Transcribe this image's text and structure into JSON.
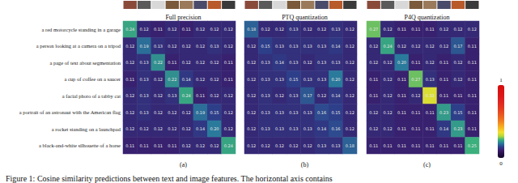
{
  "chart_data": [
    {
      "type": "heatmap",
      "title": "Full precision",
      "subtitle": "(a)",
      "tick_labels": "y",
      "data_labels": true,
      "categories": [
        "a red motorcycle standing in a garage",
        "a person looking at a camera on a tripod",
        "a page of text about segmentation",
        "a cup of coffee on a saucer",
        "a facial photo of a tabby cat",
        "a portrait of an astronaut with the American flag",
        "a rocket standing on a launchpad",
        "a black-and-white silhouette of a horse"
      ],
      "values": [
        [
          0.24,
          0.12,
          0.11,
          0.12,
          0.11,
          0.12,
          0.12,
          0.12
        ],
        [
          0.12,
          0.19,
          0.13,
          0.12,
          0.12,
          0.12,
          0.13,
          0.12
        ],
        [
          0.12,
          0.13,
          0.22,
          0.11,
          0.12,
          0.12,
          0.12,
          0.11
        ],
        [
          0.11,
          0.13,
          0.12,
          0.22,
          0.14,
          0.12,
          0.12,
          0.11
        ],
        [
          0.12,
          0.13,
          0.12,
          0.13,
          0.24,
          0.11,
          0.12,
          0.12
        ],
        [
          0.12,
          0.13,
          0.12,
          0.12,
          0.12,
          0.19,
          0.15,
          0.12
        ],
        [
          0.12,
          0.12,
          0.12,
          0.12,
          0.12,
          0.14,
          0.2,
          0.12
        ],
        [
          0.11,
          0.11,
          0.11,
          0.11,
          0.12,
          0.12,
          0.12,
          0.24
        ]
      ],
      "value_labels": [
        [
          "0.24",
          "0.12",
          "0.11",
          "0.12",
          "0.11",
          "0.12",
          "0.12",
          "0.12"
        ],
        [
          "0.12",
          "0.19",
          "0.13",
          "0.12",
          "0.12",
          "0.12",
          "0.13",
          "0.12"
        ],
        [
          "0.12",
          "0.13",
          "0.22",
          "0.11",
          "0.12",
          "0.12",
          "0.12",
          "0.11"
        ],
        [
          "0.11",
          "0.13",
          "0.12",
          "0.22",
          "0.14",
          "0.12",
          "0.12",
          "0.11"
        ],
        [
          "0.12",
          "0.13",
          "0.12",
          "0.13",
          "0.24",
          "0.11",
          "0.12",
          "0.12"
        ],
        [
          "0.12",
          "0.13",
          "0.12",
          "0.12",
          "0.12",
          "0.19",
          "0.15",
          "0.12"
        ],
        [
          "0.12",
          "0.12",
          "0.12",
          "0.12",
          "0.12",
          "0.14",
          "0.20",
          "0.12"
        ],
        [
          "0.11",
          "0.11",
          "0.11",
          "0.11",
          "0.12",
          "0.12",
          "0.12",
          "0.24"
        ]
      ],
      "colorbar": {
        "range": [
          0,
          1
        ],
        "ticks": [
          0,
          1
        ]
      }
    },
    {
      "type": "heatmap",
      "title": "PTQ quantization",
      "subtitle": "(b)",
      "tick_labels": false,
      "data_labels": true,
      "categories": [
        "a red motorcycle standing in a garage",
        "a person looking at a camera on a tripod",
        "a page of text about segmentation",
        "a cup of coffee on a saucer",
        "a facial photo of a tabby cat",
        "a portrait of an astronaut with the American flag",
        "a rocket standing on a launchpad",
        "a black-and-white silhouette of a horse"
      ],
      "values": [
        [
          0.18,
          0.12,
          0.12,
          0.13,
          0.12,
          0.12,
          0.13,
          0.12
        ],
        [
          0.12,
          0.15,
          0.13,
          0.13,
          0.13,
          0.13,
          0.14,
          0.12
        ],
        [
          0.12,
          0.13,
          0.14,
          0.13,
          0.12,
          0.13,
          0.13,
          0.12
        ],
        [
          0.12,
          0.13,
          0.13,
          0.15,
          0.13,
          0.13,
          0.2,
          0.12
        ],
        [
          0.12,
          0.13,
          0.12,
          0.13,
          0.17,
          0.12,
          0.14,
          0.12
        ],
        [
          0.12,
          0.13,
          0.13,
          0.13,
          0.13,
          0.16,
          0.15,
          0.12
        ],
        [
          0.12,
          0.13,
          0.13,
          0.13,
          0.13,
          0.14,
          0.16,
          0.12
        ],
        [
          0.12,
          0.12,
          0.12,
          0.12,
          0.12,
          0.13,
          0.13,
          0.18
        ]
      ],
      "value_labels": [
        [
          "0.18",
          "0.12",
          "0.12",
          "0.13",
          "0.12",
          "0.12",
          "0.13",
          "0.12"
        ],
        [
          "0.12",
          "0.15",
          "0.13",
          "0.13",
          "0.13",
          "0.13",
          "0.14",
          "0.12"
        ],
        [
          "0.12",
          "0.13",
          "0.14",
          "0.13",
          "0.12",
          "0.13",
          "0.13",
          "0.12"
        ],
        [
          "0.12",
          "0.13",
          "0.13",
          "0.15",
          "0.13",
          "0.13",
          "0.20",
          "0.12"
        ],
        [
          "0.12",
          "0.13",
          "0.12",
          "0.13",
          "0.17",
          "0.12",
          "0.14",
          "0.12"
        ],
        [
          "0.12",
          "0.13",
          "0.13",
          "0.13",
          "0.13",
          "0.16",
          "0.15",
          "0.12"
        ],
        [
          "0.12",
          "0.13",
          "0.13",
          "0.13",
          "0.13",
          "0.14",
          "0.16",
          "0.12"
        ],
        [
          "0.12",
          "0.12",
          "0.12",
          "0.12",
          "0.12",
          "0.13",
          "0.13",
          "0.18"
        ]
      ],
      "colorbar": {
        "range": [
          0,
          1
        ],
        "ticks": [
          0,
          1
        ]
      }
    },
    {
      "type": "heatmap",
      "title": "P4Q quantization",
      "subtitle": "(c)",
      "tick_labels": false,
      "data_labels": true,
      "categories": [
        "a red motorcycle standing in a garage",
        "a person looking at a camera on a tripod",
        "a page of text about segmentation",
        "a cup of coffee on a saucer",
        "a facial photo of a tabby cat",
        "a portrait of an astronaut with the American flag",
        "a rocket standing on a launchpad",
        "a black-and-white silhouette of a horse"
      ],
      "values": [
        [
          0.27,
          0.12,
          0.11,
          0.11,
          0.11,
          0.12,
          0.12,
          0.12
        ],
        [
          0.12,
          0.24,
          0.12,
          0.12,
          0.12,
          0.12,
          0.17,
          0.11
        ],
        [
          0.12,
          0.12,
          0.2,
          0.11,
          0.12,
          0.11,
          0.12,
          0.11
        ],
        [
          0.11,
          0.12,
          0.11,
          0.27,
          0.13,
          0.11,
          0.12,
          0.11
        ],
        [
          0.11,
          0.12,
          0.11,
          0.12,
          0.33,
          0.11,
          0.11,
          0.11
        ],
        [
          0.12,
          0.12,
          0.11,
          0.11,
          0.11,
          0.23,
          0.15,
          0.11
        ],
        [
          0.12,
          0.12,
          0.11,
          0.11,
          0.11,
          0.14,
          0.23,
          0.11
        ],
        [
          0.11,
          0.11,
          0.11,
          0.11,
          0.11,
          0.11,
          0.11,
          0.25
        ]
      ],
      "value_labels": [
        [
          "0.27",
          "0.12",
          "0.11",
          "0.11",
          "0.11",
          "0.12",
          "0.12",
          "0.12"
        ],
        [
          "0.12",
          "0.24",
          "0.12",
          "0.12",
          "0.12",
          "0.12",
          "0.17",
          "0.11"
        ],
        [
          "0.12",
          "0.12",
          "0.20",
          "0.11",
          "0.12",
          "0.11",
          "0.12",
          "0.11"
        ],
        [
          "0.11",
          "0.12",
          "0.11",
          "0.27",
          "0.13",
          "0.11",
          "0.12",
          "0.11"
        ],
        [
          "0.11",
          "0.12",
          "0.11",
          "0.12",
          "0.33",
          "0.11",
          "0.11",
          "0.11"
        ],
        [
          "0.12",
          "0.12",
          "0.11",
          "0.11",
          "0.11",
          "0.23",
          "0.15",
          "0.11"
        ],
        [
          "0.12",
          "0.12",
          "0.11",
          "0.11",
          "0.11",
          "0.14",
          "0.23",
          "0.11"
        ],
        [
          "0.11",
          "0.11",
          "0.11",
          "0.11",
          "0.11",
          "0.11",
          "0.11",
          "0.25"
        ]
      ],
      "colorbar": {
        "range": [
          0,
          1
        ],
        "ticks": [
          0,
          1
        ]
      }
    }
  ],
  "caption": "Figure 1: Cosine similarity predictions between text and image features. The horizontal axis contains"
}
